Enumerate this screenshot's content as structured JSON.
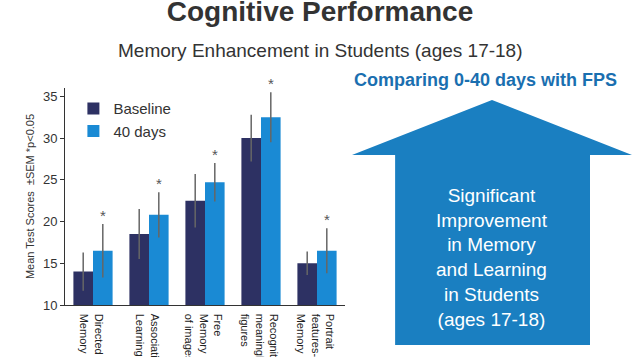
{
  "chart_data": {
    "type": "bar",
    "title": "Cognitive Performance",
    "subtitle": "Memory Enhancement in Students (ages 17-18)",
    "y_label": "Mean Test Scores  ±SEM *p<0.05",
    "categories": [
      "Directed\nMemory",
      "Associative\nLearning",
      "Free\nMemory\nof images",
      "Recognition of\nmeaningless\nfigures",
      "Portrait\nfeatures-linked\nMemory"
    ],
    "series": [
      {
        "name": "Baseline",
        "color": "#2d3163",
        "values": [
          14,
          18.5,
          22.5,
          30,
          15
        ],
        "error": [
          2.3,
          3,
          3.2,
          2.8,
          1.4
        ]
      },
      {
        "name": "40 days",
        "color": "#1a8ad4",
        "values": [
          16.5,
          20.8,
          24.7,
          32.5,
          16.5
        ],
        "error": [
          3.2,
          2.7,
          2.3,
          3,
          2.7
        ],
        "significance": [
          "*",
          "*",
          "*",
          "*",
          "*"
        ]
      }
    ],
    "annotations": [
      "Comparing 0-40 days with FPS",
      "Significant\nImprovement\nin Memory\nand Learning\nin Students\n(ages 17-18)"
    ],
    "ylim": [
      10,
      36
    ],
    "yticks": [
      10,
      15,
      20,
      25,
      30,
      35
    ],
    "grid": false,
    "legend": "top left"
  }
}
